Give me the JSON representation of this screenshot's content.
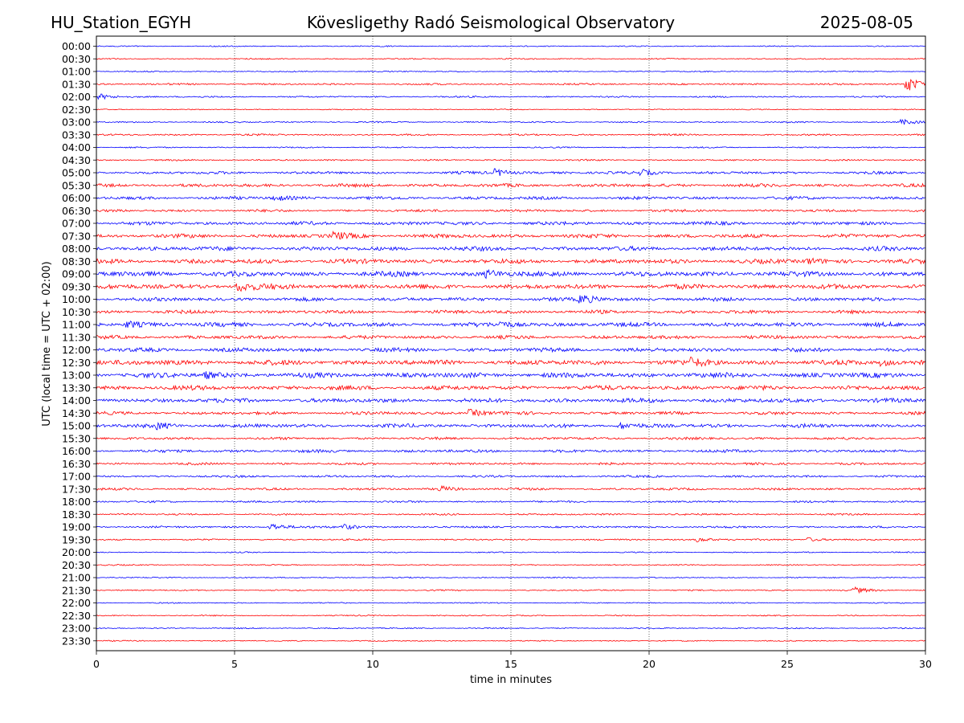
{
  "header": {
    "station": "HU_Station_EGYH",
    "observatory": "Kövesligethy Radó Seismological Observatory",
    "date": "2025-08-05"
  },
  "chart_data": {
    "type": "line",
    "title": "Kövesligethy Radó Seismological Observatory",
    "xlabel": "time in minutes",
    "ylabel": "UTC (local time = UTC + 02:00)",
    "xlim": [
      0,
      30
    ],
    "xticks": [
      "0",
      "5",
      "10",
      "15",
      "20",
      "25",
      "30"
    ],
    "grid": "vertical dotted lines at 5-minute intervals",
    "colors": {
      "even_rows": "#0000ff",
      "odd_rows": "#ff0000"
    },
    "row_labels": [
      "00:00",
      "00:30",
      "01:00",
      "01:30",
      "02:00",
      "02:30",
      "03:00",
      "03:30",
      "04:00",
      "04:30",
      "05:00",
      "05:30",
      "06:00",
      "06:30",
      "07:00",
      "07:30",
      "08:00",
      "08:30",
      "09:00",
      "09:30",
      "10:00",
      "10:30",
      "11:00",
      "11:30",
      "12:00",
      "12:30",
      "13:00",
      "13:30",
      "14:00",
      "14:30",
      "15:00",
      "15:30",
      "16:00",
      "16:30",
      "17:00",
      "17:30",
      "18:00",
      "18:30",
      "19:00",
      "19:30",
      "20:00",
      "20:30",
      "21:00",
      "21:30",
      "22:00",
      "22:30",
      "23:00",
      "23:30"
    ],
    "noise_level": [
      0.6,
      0.6,
      0.6,
      0.9,
      0.8,
      0.5,
      0.7,
      0.9,
      0.7,
      0.8,
      1.4,
      1.7,
      1.6,
      1.3,
      1.8,
      2.0,
      2.2,
      2.3,
      2.6,
      2.5,
      1.9,
      1.8,
      2.2,
      1.8,
      2.1,
      2.6,
      2.6,
      2.3,
      2.2,
      1.6,
      1.9,
      1.3,
      1.5,
      1.2,
      1.1,
      1.2,
      1.0,
      0.9,
      1.0,
      0.8,
      0.6,
      0.6,
      0.6,
      0.7,
      0.6,
      0.6,
      0.6,
      0.6
    ],
    "events": [
      {
        "row": 3,
        "minute": 29.4,
        "amp": 8
      },
      {
        "row": 4,
        "minute": 0.2,
        "amp": 3
      },
      {
        "row": 6,
        "minute": 29.2,
        "amp": 3
      },
      {
        "row": 10,
        "minute": 14.5,
        "amp": 4
      },
      {
        "row": 10,
        "minute": 19.8,
        "amp": 3
      },
      {
        "row": 12,
        "minute": 6.5,
        "amp": 3
      },
      {
        "row": 15,
        "minute": 8.7,
        "amp": 3.5
      },
      {
        "row": 17,
        "minute": 25.8,
        "amp": 3
      },
      {
        "row": 18,
        "minute": 14.2,
        "amp": 3.5
      },
      {
        "row": 19,
        "minute": 5.2,
        "amp": 5
      },
      {
        "row": 20,
        "minute": 17.6,
        "amp": 5
      },
      {
        "row": 22,
        "minute": 1.2,
        "amp": 3.5
      },
      {
        "row": 22,
        "minute": 14.7,
        "amp": 3
      },
      {
        "row": 25,
        "minute": 21.6,
        "amp": 4
      },
      {
        "row": 25,
        "minute": 28.5,
        "amp": 3.5
      },
      {
        "row": 26,
        "minute": 4.0,
        "amp": 3
      },
      {
        "row": 29,
        "minute": 13.6,
        "amp": 4
      },
      {
        "row": 30,
        "minute": 2.3,
        "amp": 3
      },
      {
        "row": 30,
        "minute": 19.0,
        "amp": 3
      },
      {
        "row": 35,
        "minute": 12.5,
        "amp": 3
      },
      {
        "row": 38,
        "minute": 6.4,
        "amp": 4
      },
      {
        "row": 38,
        "minute": 9.0,
        "amp": 3
      },
      {
        "row": 39,
        "minute": 21.8,
        "amp": 2.5
      },
      {
        "row": 39,
        "minute": 25.8,
        "amp": 2.5
      },
      {
        "row": 43,
        "minute": 27.5,
        "amp": 3
      }
    ]
  }
}
